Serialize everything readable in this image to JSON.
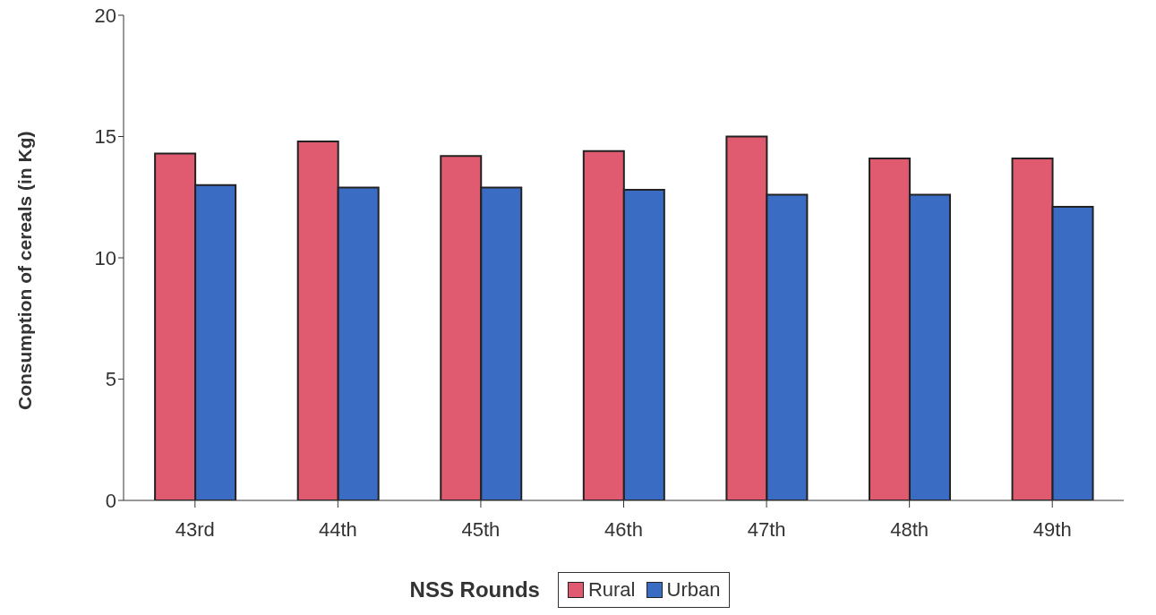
{
  "chart_data": {
    "type": "bar",
    "xlabel": "NSS Rounds",
    "ylabel": "Consumption of cereals (in Kg)",
    "categories": [
      "43rd",
      "44th",
      "45th",
      "46th",
      "47th",
      "48th",
      "49th"
    ],
    "series": [
      {
        "name": "Rural",
        "color": "#e05a70",
        "values": [
          14.3,
          14.8,
          14.2,
          14.4,
          15.0,
          14.1,
          14.1
        ]
      },
      {
        "name": "Urban",
        "color": "#3a6cc4",
        "values": [
          13.0,
          12.9,
          12.9,
          12.8,
          12.6,
          12.6,
          12.1
        ]
      }
    ],
    "ylim": [
      0,
      20
    ],
    "yticks": [
      0,
      5,
      10,
      15,
      20
    ],
    "legend": "bottom"
  }
}
